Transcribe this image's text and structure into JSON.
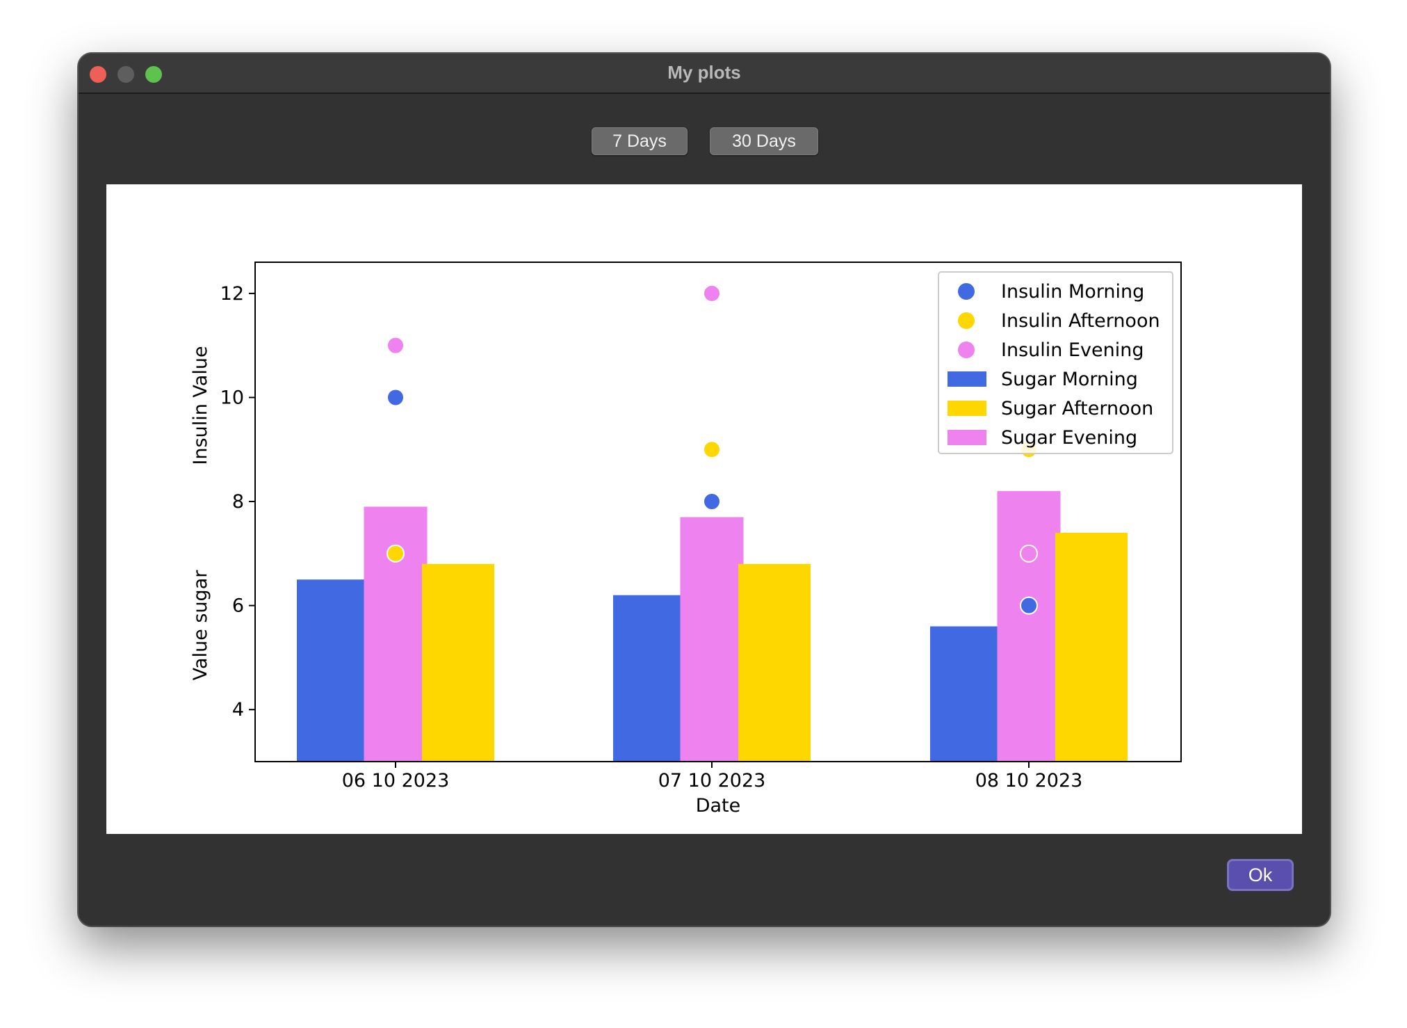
{
  "window": {
    "title": "My plots"
  },
  "toolbar": {
    "btn_7": "7 Days",
    "btn_30": "30 Days"
  },
  "footer": {
    "ok": "Ok"
  },
  "chart_data": {
    "type": "bar",
    "title": "",
    "xlabel": "Date",
    "ylabel": "Value sugar",
    "ylabel2": "Insulin Value",
    "ylim": [
      3,
      12.6
    ],
    "yticks": [
      4,
      6,
      8,
      10,
      12
    ],
    "categories": [
      "06 10 2023",
      "07 10 2023",
      "08 10 2023"
    ],
    "bar_series": [
      {
        "name": "Sugar Morning",
        "color": "#4169e1",
        "values": [
          6.5,
          6.2,
          5.6
        ]
      },
      {
        "name": "Sugar Evening",
        "color": "#ee82ee",
        "values": [
          7.9,
          7.7,
          8.2
        ]
      },
      {
        "name": "Sugar Afternoon",
        "color": "#ffd700",
        "values": [
          6.8,
          6.8,
          7.4
        ]
      }
    ],
    "point_series": [
      {
        "name": "Insulin Morning",
        "color": "#4169e1",
        "values": [
          10,
          8,
          6
        ]
      },
      {
        "name": "Insulin Afternoon",
        "color": "#ffd700",
        "values": [
          7,
          9,
          9
        ]
      },
      {
        "name": "Insulin Evening",
        "color": "#ee82ee",
        "values": [
          11,
          12,
          7
        ]
      }
    ],
    "legend": {
      "location": "top-right",
      "entries": [
        {
          "label": "Insulin Morning",
          "kind": "marker",
          "color": "#4169e1"
        },
        {
          "label": "Insulin Afternoon",
          "kind": "marker",
          "color": "#ffd700"
        },
        {
          "label": "Insulin Evening",
          "kind": "marker",
          "color": "#ee82ee"
        },
        {
          "label": "Sugar Morning",
          "kind": "bar",
          "color": "#4169e1"
        },
        {
          "label": "Sugar Afternoon",
          "kind": "bar",
          "color": "#ffd700"
        },
        {
          "label": "Sugar Evening",
          "kind": "bar",
          "color": "#ee82ee"
        }
      ]
    }
  }
}
